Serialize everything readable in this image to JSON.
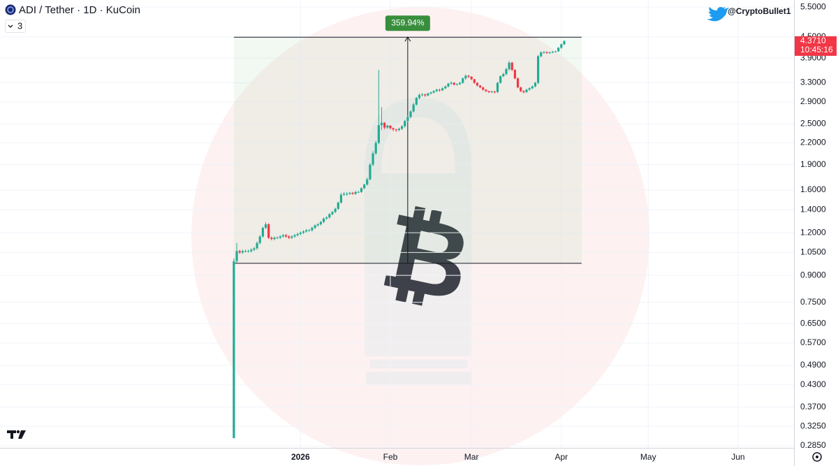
{
  "chart_data": {
    "type": "candlestick",
    "title": "ADI / Tether · 1D · KuCoin",
    "indicator_count": 3,
    "author": "@CryptoBullet1",
    "log_scale": true,
    "grid": true,
    "up_color": "#22ab94",
    "down_color": "#f23645",
    "xlim": [
      -80.7,
      193.3
    ],
    "xticks": [
      {
        "value": 23,
        "label": "2026"
      },
      {
        "value": 54,
        "label": "Feb"
      },
      {
        "value": 82,
        "label": "Mar"
      },
      {
        "value": 113,
        "label": "Apr"
      },
      {
        "value": 143,
        "label": "May"
      },
      {
        "value": 174,
        "label": "Jun"
      }
    ],
    "ylim": [
      0.281,
      5.77
    ],
    "yticks": [
      {
        "value": 5.5,
        "label": "5.5000"
      },
      {
        "value": 4.5,
        "label": "4.5000"
      },
      {
        "value": 3.9,
        "label": "3.9000"
      },
      {
        "value": 3.3,
        "label": "3.3000"
      },
      {
        "value": 2.9,
        "label": "2.9000"
      },
      {
        "value": 2.5,
        "label": "2.5000"
      },
      {
        "value": 2.2,
        "label": "2.2000"
      },
      {
        "value": 1.9,
        "label": "1.9000"
      },
      {
        "value": 1.6,
        "label": "1.6000"
      },
      {
        "value": 1.4,
        "label": "1.4000"
      },
      {
        "value": 1.2,
        "label": "1.2000"
      },
      {
        "value": 1.05,
        "label": "1.0500"
      },
      {
        "value": 0.9,
        "label": "0.9000"
      },
      {
        "value": 0.75,
        "label": "0.7500"
      },
      {
        "value": 0.65,
        "label": "0.6500"
      },
      {
        "value": 0.57,
        "label": "0.5700"
      },
      {
        "value": 0.49,
        "label": "0.4900"
      },
      {
        "value": 0.43,
        "label": "0.4300"
      },
      {
        "value": 0.37,
        "label": "0.3700"
      },
      {
        "value": 0.325,
        "label": "0.3250"
      },
      {
        "value": 0.285,
        "label": "0.2850"
      }
    ],
    "last_price": {
      "value": 4.371,
      "label": "4.3710"
    },
    "countdown": "10:45:16",
    "measure": {
      "start": 0,
      "end": 120,
      "low": 0.976,
      "high": 4.49,
      "label": "359.94%"
    },
    "open": [
      0.3,
      0.99,
      1.06,
      1.05,
      1.06,
      1.06,
      1.06,
      1.07,
      1.08,
      1.12,
      1.17,
      1.24,
      1.27,
      1.16,
      1.15,
      1.16,
      1.16,
      1.17,
      1.18,
      1.17,
      1.16,
      1.17,
      1.18,
      1.19,
      1.2,
      1.21,
      1.22,
      1.22,
      1.24,
      1.26,
      1.27,
      1.29,
      1.32,
      1.33,
      1.36,
      1.38,
      1.41,
      1.47,
      1.55,
      1.56,
      1.56,
      1.57,
      1.56,
      1.58,
      1.58,
      1.62,
      1.66,
      1.72,
      1.9,
      2.05,
      2.2,
      2.48,
      2.52,
      2.44,
      2.47,
      2.43,
      2.41,
      2.4,
      2.42,
      2.46,
      2.55,
      2.62,
      2.72,
      2.85,
      2.98,
      3.04,
      3.05,
      3.03,
      3.07,
      3.09,
      3.12,
      3.15,
      3.14,
      3.18,
      3.22,
      3.28,
      3.3,
      3.26,
      3.27,
      3.3,
      3.4,
      3.46,
      3.44,
      3.38,
      3.3,
      3.24,
      3.2,
      3.15,
      3.12,
      3.1,
      3.11,
      3.1,
      3.3,
      3.45,
      3.5,
      3.62,
      3.78,
      3.6,
      3.4,
      3.2,
      3.12,
      3.1,
      3.15,
      3.18,
      3.22,
      3.3,
      3.95,
      4.05,
      4.06,
      4.04,
      4.05,
      4.07,
      4.08,
      4.18,
      4.28
    ],
    "high": [
      1.01,
      1.12,
      1.07,
      1.07,
      1.07,
      1.07,
      1.08,
      1.09,
      1.13,
      1.18,
      1.25,
      1.29,
      1.28,
      1.17,
      1.17,
      1.17,
      1.18,
      1.19,
      1.19,
      1.18,
      1.18,
      1.19,
      1.2,
      1.21,
      1.22,
      1.23,
      1.23,
      1.25,
      1.27,
      1.28,
      1.3,
      1.33,
      1.34,
      1.37,
      1.39,
      1.42,
      1.48,
      1.57,
      1.58,
      1.58,
      1.58,
      1.58,
      1.59,
      1.59,
      1.63,
      1.67,
      1.74,
      1.92,
      2.08,
      2.23,
      3.6,
      2.8,
      2.53,
      2.49,
      2.48,
      2.44,
      2.42,
      2.44,
      2.48,
      2.57,
      2.64,
      2.74,
      2.88,
      3.0,
      3.07,
      3.08,
      3.07,
      3.09,
      3.11,
      3.14,
      3.17,
      3.17,
      3.2,
      3.24,
      3.3,
      3.33,
      3.31,
      3.29,
      3.32,
      3.42,
      3.49,
      3.48,
      3.45,
      3.39,
      3.31,
      3.25,
      3.21,
      3.16,
      3.13,
      3.13,
      3.13,
      3.32,
      3.47,
      3.53,
      3.65,
      3.82,
      3.8,
      3.62,
      3.42,
      3.21,
      3.14,
      3.17,
      3.2,
      3.24,
      3.32,
      3.98,
      4.08,
      4.09,
      4.08,
      4.07,
      4.09,
      4.1,
      4.2,
      4.3,
      4.4
    ],
    "low": [
      0.3,
      0.98,
      1.04,
      1.04,
      1.05,
      1.05,
      1.05,
      1.06,
      1.07,
      1.11,
      1.16,
      1.23,
      1.15,
      1.14,
      1.14,
      1.15,
      1.15,
      1.16,
      1.16,
      1.15,
      1.15,
      1.16,
      1.17,
      1.18,
      1.19,
      1.2,
      1.21,
      1.21,
      1.23,
      1.25,
      1.26,
      1.28,
      1.31,
      1.32,
      1.35,
      1.37,
      1.4,
      1.46,
      1.54,
      1.54,
      1.55,
      1.55,
      1.55,
      1.57,
      1.57,
      1.61,
      1.65,
      1.71,
      1.88,
      2.03,
      2.18,
      2.4,
      2.41,
      2.42,
      2.41,
      2.38,
      2.37,
      2.38,
      2.4,
      2.44,
      2.53,
      2.6,
      2.7,
      2.83,
      2.95,
      3.01,
      3.0,
      3.01,
      3.05,
      3.07,
      3.1,
      3.11,
      3.12,
      3.16,
      3.2,
      3.26,
      3.24,
      3.24,
      3.25,
      3.28,
      3.37,
      3.41,
      3.36,
      3.28,
      3.22,
      3.18,
      3.13,
      3.1,
      3.08,
      3.08,
      3.07,
      3.08,
      3.28,
      3.43,
      3.47,
      3.58,
      3.57,
      3.38,
      3.18,
      3.1,
      3.07,
      3.08,
      3.13,
      3.16,
      3.2,
      3.27,
      3.92,
      4.02,
      4.01,
      4.01,
      4.03,
      4.05,
      4.06,
      4.15,
      4.25
    ],
    "close": [
      0.99,
      1.06,
      1.05,
      1.06,
      1.06,
      1.06,
      1.07,
      1.08,
      1.12,
      1.17,
      1.24,
      1.27,
      1.16,
      1.15,
      1.16,
      1.16,
      1.17,
      1.18,
      1.17,
      1.16,
      1.17,
      1.18,
      1.19,
      1.2,
      1.21,
      1.22,
      1.22,
      1.24,
      1.26,
      1.27,
      1.29,
      1.32,
      1.33,
      1.36,
      1.38,
      1.41,
      1.47,
      1.55,
      1.56,
      1.56,
      1.57,
      1.56,
      1.58,
      1.58,
      1.62,
      1.66,
      1.72,
      1.9,
      2.05,
      2.2,
      2.48,
      2.52,
      2.44,
      2.47,
      2.43,
      2.41,
      2.4,
      2.42,
      2.46,
      2.55,
      2.62,
      2.72,
      2.85,
      2.98,
      3.04,
      3.05,
      3.03,
      3.07,
      3.09,
      3.12,
      3.15,
      3.14,
      3.18,
      3.22,
      3.28,
      3.3,
      3.26,
      3.27,
      3.3,
      3.4,
      3.46,
      3.44,
      3.38,
      3.3,
      3.24,
      3.2,
      3.15,
      3.12,
      3.1,
      3.11,
      3.1,
      3.3,
      3.45,
      3.5,
      3.62,
      3.78,
      3.6,
      3.4,
      3.2,
      3.12,
      3.1,
      3.15,
      3.18,
      3.22,
      3.3,
      3.95,
      4.05,
      4.06,
      4.04,
      4.05,
      4.07,
      4.08,
      4.18,
      4.28,
      4.371
    ]
  }
}
